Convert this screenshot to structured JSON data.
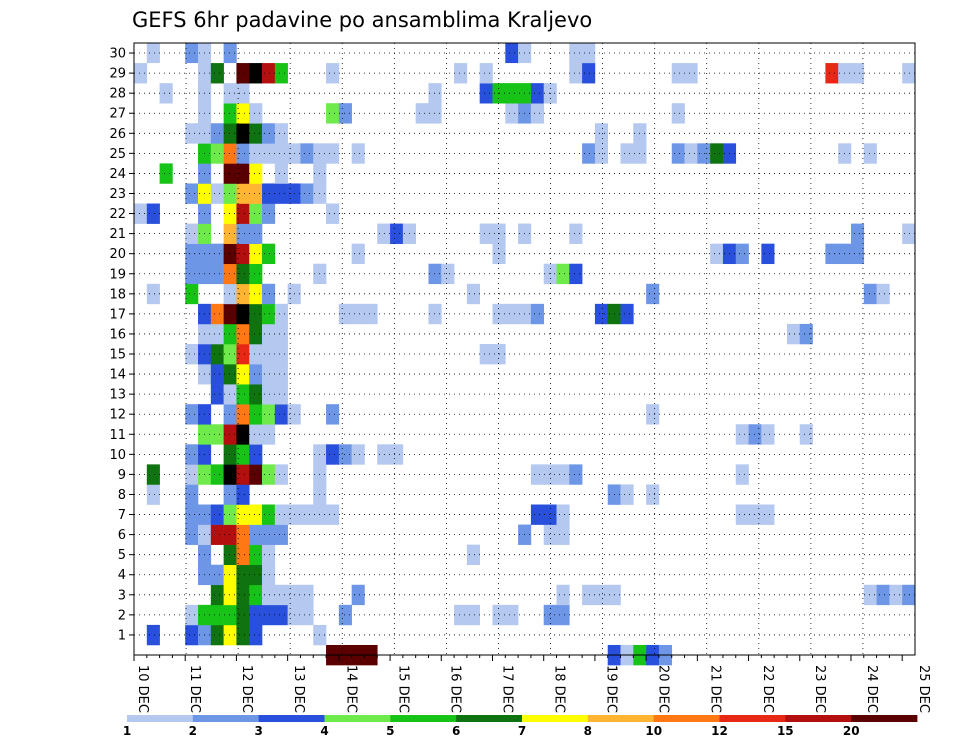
{
  "chart_data": {
    "type": "heatmap",
    "title": "GEFS 6hr padavine po ansamblima Kraljevo",
    "x_tick_labels": [
      "10 DEC",
      "11 DEC",
      "12 DEC",
      "13 DEC",
      "14 DEC",
      "15 DEC",
      "16 DEC",
      "17 DEC",
      "18 DEC",
      "19 DEC",
      "20 DEC",
      "21 DEC",
      "22 DEC",
      "23 DEC",
      "24 DEC",
      "25 DEC"
    ],
    "y_tick_labels": [
      "1",
      "2",
      "3",
      "4",
      "5",
      "6",
      "7",
      "8",
      "9",
      "10",
      "11",
      "12",
      "13",
      "14",
      "15",
      "16",
      "17",
      "18",
      "19",
      "20",
      "21",
      "22",
      "23",
      "24",
      "25",
      "26",
      "27",
      "28",
      "29",
      "30"
    ],
    "y_range": [
      0,
      30
    ],
    "x_step": "6hr",
    "grid": "dotted",
    "colorbar": {
      "placement": "bottom",
      "labels": [
        "1",
        "2",
        "3",
        "4",
        "5",
        "6",
        "7",
        "8",
        "10",
        "12",
        "15",
        "20"
      ],
      "colors": [
        "#b4c8f0",
        "#6e96e6",
        "#2850dc",
        "#6eeb4b",
        "#18c318",
        "#0f730f",
        "#ffff00",
        "#ffb432",
        "#ff7814",
        "#e62814",
        "#b40f0f",
        "#5a0000"
      ]
    },
    "member_rows": {
      "0": {
        "15": 12,
        "16": 12,
        "17": 12,
        "18": 12,
        "37": 3,
        "38": 1,
        "39": 5,
        "40": 3,
        "41": 2
      },
      "1": {
        "1": 3,
        "4": 3,
        "5": 2,
        "6": 6,
        "7": 7,
        "8": 6,
        "9": 3,
        "14": 1
      },
      "2": {
        "4": 1,
        "5": 5,
        "6": 5,
        "7": 5,
        "8": 6,
        "9": 3,
        "10": 3,
        "11": 3,
        "12": 1,
        "13": 1,
        "16": 2,
        "25": 1,
        "26": 1,
        "28": 1,
        "29": 1,
        "32": 2,
        "33": 2
      },
      "3": {
        "6": 6,
        "7": 7,
        "8": 6,
        "9": 5,
        "10": 1,
        "11": 1,
        "12": 1,
        "13": 1,
        "17": 2,
        "33": 1,
        "35": 1,
        "36": 1,
        "37": 1,
        "57": 1,
        "58": 2,
        "59": 1,
        "60": 2
      },
      "4": {
        "5": 2,
        "6": 2,
        "7": 7,
        "8": 6,
        "9": 6,
        "10": 1
      },
      "5": {
        "5": 2,
        "7": 6,
        "8": 9,
        "9": 5,
        "10": 1,
        "26": 1
      },
      "6": {
        "4": 2,
        "5": 1,
        "6": 11,
        "7": 11,
        "8": 9,
        "9": 2,
        "10": 2,
        "11": 2,
        "30": 2,
        "32": 1,
        "33": 1
      },
      "7": {
        "4": 2,
        "5": 2,
        "6": 3,
        "7": 4,
        "8": 7,
        "9": 7,
        "10": 5,
        "11": 1,
        "12": 1,
        "13": 1,
        "14": 1,
        "15": 1,
        "31": 3,
        "32": 3,
        "33": 1,
        "47": 1,
        "48": 1,
        "49": 1
      },
      "8": {
        "1": 1,
        "4": 2,
        "7": 2,
        "8": 3,
        "14": 1,
        "37": 2,
        "38": 1,
        "40": 1
      },
      "9": {
        "1": 6,
        "4": 1,
        "5": 4,
        "6": 5,
        "7": 13,
        "8": 11,
        "9": 12,
        "10": 4,
        "11": 1,
        "14": 1,
        "31": 1,
        "32": 1,
        "33": 1,
        "34": 2,
        "47": 1
      },
      "10": {
        "4": 2,
        "5": 3,
        "7": 6,
        "8": 5,
        "9": 3,
        "14": 1,
        "15": 3,
        "16": 2,
        "17": 1,
        "19": 1,
        "20": 1
      },
      "11": {
        "5": 4,
        "6": 4,
        "7": 11,
        "8": 13,
        "9": 1,
        "10": 1,
        "47": 1,
        "48": 2,
        "49": 1,
        "52": 1
      },
      "12": {
        "4": 2,
        "5": 3,
        "7": 2,
        "8": 9,
        "9": 5,
        "10": 4,
        "11": 3,
        "12": 1,
        "15": 2,
        "40": 1
      },
      "13": {
        "6": 3,
        "7": 1,
        "8": 5,
        "9": 6,
        "10": 1,
        "11": 1
      },
      "14": {
        "5": 1,
        "6": 3,
        "7": 6,
        "8": 7,
        "9": 2,
        "10": 1,
        "11": 1
      },
      "15": {
        "4": 1,
        "5": 3,
        "6": 6,
        "7": 4,
        "8": 10,
        "9": 1,
        "10": 1,
        "11": 1,
        "27": 1,
        "28": 1
      },
      "16": {
        "5": 1,
        "6": 1,
        "7": 5,
        "8": 9,
        "9": 6,
        "10": 1,
        "11": 1,
        "51": 1,
        "52": 2
      },
      "17": {
        "5": 3,
        "6": 9,
        "7": 12,
        "8": 13,
        "9": 6,
        "10": 5,
        "11": 1,
        "16": 1,
        "17": 1,
        "18": 1,
        "23": 1,
        "28": 1,
        "29": 1,
        "30": 1,
        "31": 2,
        "36": 3,
        "37": 6,
        "38": 3
      },
      "18": {
        "1": 1,
        "4": 5,
        "7": 1,
        "8": 8,
        "9": 7,
        "10": 2,
        "12": 1,
        "26": 1,
        "40": 2,
        "57": 2,
        "58": 1
      },
      "19": {
        "4": 2,
        "5": 2,
        "6": 2,
        "7": 9,
        "8": 6,
        "9": 5,
        "14": 1,
        "23": 2,
        "24": 1,
        "32": 1,
        "33": 4,
        "34": 3
      },
      "20": {
        "4": 2,
        "5": 2,
        "6": 2,
        "7": 12,
        "8": 11,
        "9": 7,
        "10": 5,
        "17": 1,
        "28": 1,
        "45": 1,
        "46": 3,
        "47": 2,
        "49": 3,
        "54": 2,
        "55": 2,
        "56": 2
      },
      "21": {
        "4": 1,
        "5": 4,
        "7": 8,
        "8": 2,
        "9": 2,
        "19": 1,
        "20": 3,
        "21": 1,
        "27": 1,
        "28": 1,
        "30": 1,
        "34": 1,
        "56": 2,
        "60": 1
      },
      "22": {
        "0": 1,
        "1": 3,
        "5": 2,
        "7": 7,
        "8": 11,
        "9": 4,
        "10": 2,
        "15": 1
      },
      "23": {
        "4": 2,
        "5": 7,
        "6": 1,
        "7": 4,
        "8": 8,
        "9": 8,
        "10": 3,
        "11": 3,
        "12": 3,
        "13": 2,
        "14": 1
      },
      "24": {
        "2": 5,
        "5": 2,
        "7": 12,
        "8": 12,
        "9": 7,
        "11": 1,
        "14": 1
      },
      "25": {
        "5": 5,
        "6": 4,
        "7": 9,
        "8": 2,
        "9": 1,
        "10": 1,
        "11": 1,
        "12": 1,
        "13": 2,
        "14": 1,
        "15": 1,
        "17": 1,
        "35": 2,
        "36": 1,
        "38": 1,
        "39": 1,
        "42": 2,
        "43": 1,
        "44": 2,
        "45": 6,
        "46": 3,
        "55": 1,
        "57": 1
      },
      "26": {
        "4": 1,
        "5": 1,
        "6": 2,
        "7": 6,
        "8": 13,
        "9": 6,
        "10": 2,
        "11": 1,
        "36": 1,
        "39": 1
      },
      "27": {
        "5": 1,
        "7": 5,
        "8": 7,
        "9": 1,
        "15": 4,
        "16": 2,
        "22": 1,
        "23": 1,
        "29": 1,
        "30": 2,
        "31": 1,
        "42": 1
      },
      "28": {
        "2": 1,
        "5": 1,
        "7": 1,
        "8": 1,
        "23": 1,
        "27": 3,
        "28": 5,
        "29": 5,
        "30": 5,
        "31": 3,
        "32": 1
      },
      "29": {
        "0": 1,
        "5": 1,
        "6": 6,
        "8": 12,
        "9": 13,
        "10": 11,
        "11": 5,
        "15": 1,
        "25": 1,
        "27": 1,
        "34": 1,
        "35": 3,
        "42": 1,
        "43": 1,
        "54": 10,
        "55": 1,
        "56": 1,
        "60": 1
      },
      "30": {
        "1": 1,
        "4": 2,
        "5": 1,
        "7": 2,
        "29": 3,
        "30": 1,
        "34": 1,
        "35": 1
      }
    }
  }
}
